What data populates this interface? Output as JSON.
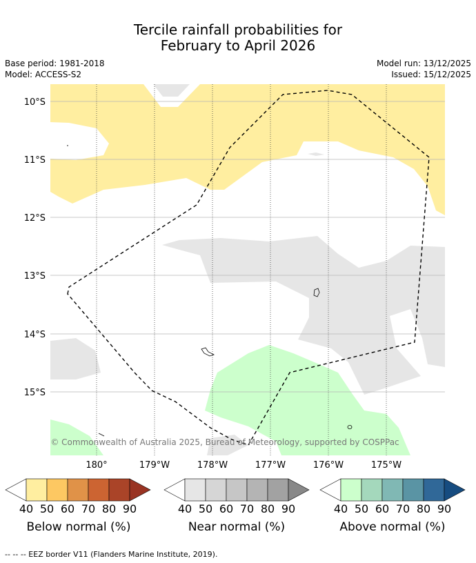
{
  "title_line1": "Tercile rainfall probabilities for",
  "title_line2": "February to April 2026",
  "base_period": "Base period: 1981-2018",
  "model": "Model: ACCESS-S2",
  "model_run": "Model run: 13/12/2025",
  "issued": "Issued: 15/12/2025",
  "lat_labels": [
    "10°S",
    "11°S",
    "12°S",
    "13°S",
    "14°S",
    "15°S"
  ],
  "lon_labels": [
    "180°",
    "179°W",
    "178°W",
    "177°W",
    "176°W",
    "175°W"
  ],
  "copyright": "© Commonwealth of Australia 2025, Bureau of Meteorology, supported by COSPPac",
  "colorbars": [
    {
      "label": "Below normal (%)",
      "ticks": [
        "40",
        "50",
        "60",
        "70",
        "80",
        "90"
      ],
      "colors": [
        "#ffeea0",
        "#fdc862",
        "#e09248",
        "#cc6432",
        "#aa4428",
        "#993322"
      ]
    },
    {
      "label": "Near normal (%)",
      "ticks": [
        "40",
        "50",
        "60",
        "70",
        "80",
        "90"
      ],
      "colors": [
        "#e6e6e6",
        "#d6d6d6",
        "#c6c6c6",
        "#b4b4b4",
        "#a2a2a2",
        "#888888"
      ]
    },
    {
      "label": "Above normal (%)",
      "ticks": [
        "40",
        "50",
        "60",
        "70",
        "80",
        "90"
      ],
      "colors": [
        "#ccffcc",
        "#a4d8bc",
        "#80b8b4",
        "#5a94a4",
        "#306898",
        "#164c80"
      ]
    }
  ],
  "map_colors": {
    "below": "#ffeea0",
    "near": "#e6e6e6",
    "above": "#ccffcc"
  },
  "footnote": "--  --  -- EEZ border V11 (Flanders Marine Institute, 2019)."
}
